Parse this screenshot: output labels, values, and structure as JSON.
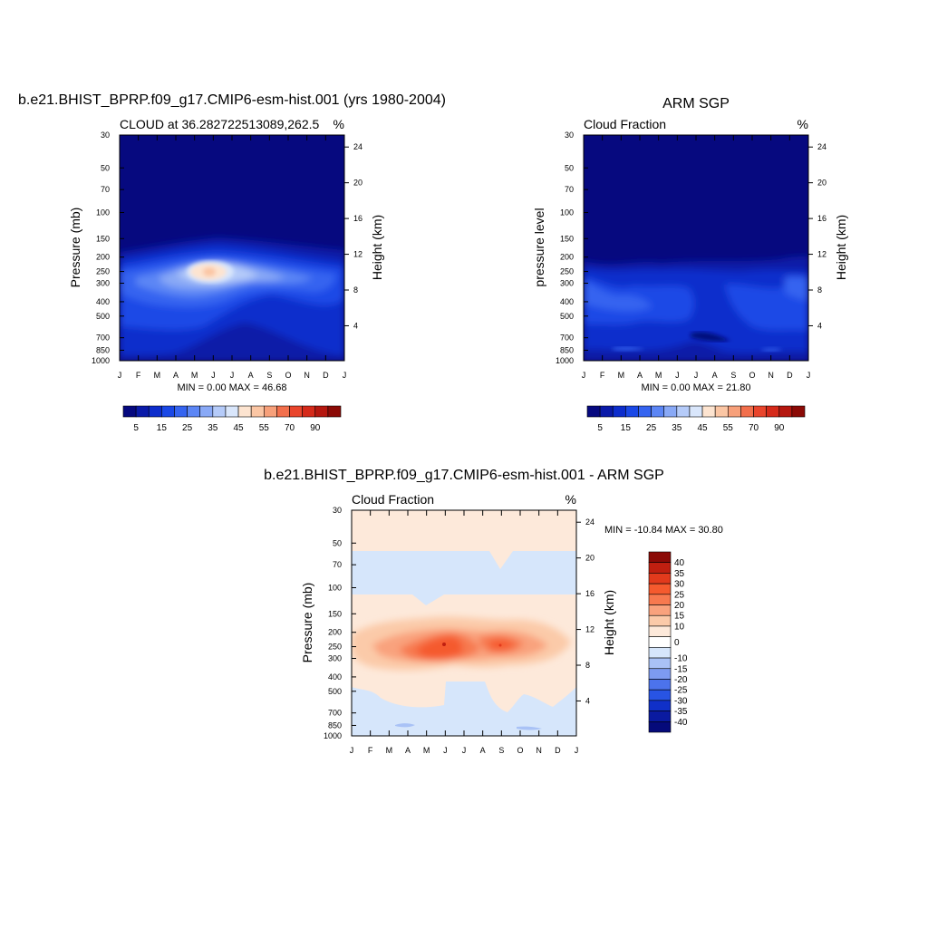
{
  "chart_data": [
    {
      "type": "heatmap",
      "title": "b.e21.BHIST_BPRP.f09_g17.CMIP6-esm-hist.001 (yrs 1980-2004)",
      "left_label": "CLOUD at 36.282722513089,262.5",
      "right_label": "%",
      "ylabel": "Pressure (mb)",
      "ylabel_right": "Height (km)",
      "x_ticks": [
        "J",
        "F",
        "M",
        "A",
        "M",
        "J",
        "J",
        "A",
        "S",
        "O",
        "N",
        "D",
        "J"
      ],
      "y_ticks": [
        30,
        50,
        70,
        100,
        150,
        200,
        250,
        300,
        400,
        500,
        700,
        850,
        1000
      ],
      "y2_ticks": [
        24,
        20,
        16,
        12,
        8,
        4
      ],
      "ylim": [
        30,
        1000
      ],
      "stats": "MIN =   0.00 MAX =  46.68",
      "min": 0.0,
      "max": 46.68,
      "colorbar_labels": [
        "5",
        "15",
        "25",
        "35",
        "45",
        "55",
        "70",
        "90"
      ],
      "colorbar_colors": [
        "#06097f",
        "#0a1aa8",
        "#0d2dcc",
        "#1a48e6",
        "#3564f0",
        "#5c86f5",
        "#89a9f6",
        "#b5cbf9",
        "#d9e6fb",
        "#fde4d0",
        "#fbc6a4",
        "#f7a07a",
        "#f26f4c",
        "#e9452c",
        "#d52a1a",
        "#b5170f",
        "#8b0a06"
      ]
    },
    {
      "type": "heatmap",
      "title": "ARM SGP",
      "left_label": "Cloud Fraction",
      "right_label": "%",
      "ylabel": "pressure level",
      "ylabel_right": "Height (km)",
      "x_ticks": [
        "J",
        "F",
        "M",
        "A",
        "M",
        "J",
        "J",
        "A",
        "S",
        "O",
        "N",
        "D",
        "J"
      ],
      "y_ticks": [
        30,
        50,
        70,
        100,
        150,
        200,
        250,
        300,
        400,
        500,
        700,
        850,
        1000
      ],
      "y2_ticks": [
        24,
        20,
        16,
        12,
        8,
        4
      ],
      "ylim": [
        30,
        1000
      ],
      "stats": "MIN =   0.00 MAX =  21.80",
      "min": 0.0,
      "max": 21.8,
      "colorbar_labels": [
        "5",
        "15",
        "25",
        "35",
        "45",
        "55",
        "70",
        "90"
      ],
      "colorbar_colors": [
        "#06097f",
        "#0a1aa8",
        "#0d2dcc",
        "#1a48e6",
        "#3564f0",
        "#5c86f5",
        "#89a9f6",
        "#b5cbf9",
        "#d9e6fb",
        "#fde4d0",
        "#fbc6a4",
        "#f7a07a",
        "#f26f4c",
        "#e9452c",
        "#d52a1a",
        "#b5170f",
        "#8b0a06"
      ]
    },
    {
      "type": "heatmap",
      "title": "b.e21.BHIST_BPRP.f09_g17.CMIP6-esm-hist.001 - ARM SGP",
      "left_label": "Cloud Fraction",
      "right_label": "%",
      "ylabel": "Pressure (mb)",
      "ylabel_right": "Height (km)",
      "x_ticks": [
        "J",
        "F",
        "M",
        "A",
        "M",
        "J",
        "J",
        "A",
        "S",
        "O",
        "N",
        "D",
        "J"
      ],
      "y_ticks": [
        30,
        50,
        70,
        100,
        150,
        200,
        250,
        300,
        400,
        500,
        700,
        850,
        1000
      ],
      "y2_ticks": [
        24,
        20,
        16,
        12,
        8,
        4
      ],
      "ylim": [
        30,
        1000
      ],
      "stats": "MIN = -10.84 MAX =  30.80",
      "min": -10.84,
      "max": 30.8,
      "colorbar_labels": [
        "40",
        "35",
        "30",
        "25",
        "20",
        "15",
        "10",
        "0",
        "-10",
        "-15",
        "-20",
        "-25",
        "-30",
        "-35",
        "-40"
      ],
      "colorbar_colors": [
        "#8b0a06",
        "#c01f10",
        "#e23a1c",
        "#f55a2e",
        "#f7794f",
        "#f9a27d",
        "#fbcaa9",
        "#fde9da",
        "#ffffff",
        "#d6e6fb",
        "#a9c2f6",
        "#7d9bf1",
        "#4c73ec",
        "#2854e4",
        "#1030c8",
        "#0a1aa0",
        "#050a7a"
      ]
    }
  ]
}
